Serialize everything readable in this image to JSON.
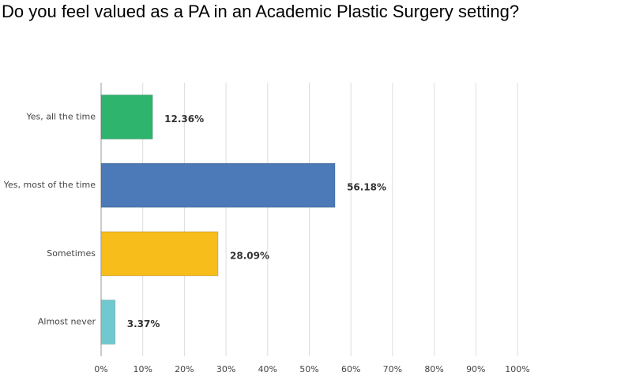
{
  "chart_data": {
    "type": "hbar",
    "title": "Do you feel valued as a PA in an Academic Plastic Surgery setting?",
    "categories": [
      "Yes, all the time",
      "Yes, most of the time",
      "Sometimes",
      "Almost never"
    ],
    "values": [
      12.36,
      56.18,
      28.09,
      3.37
    ],
    "value_labels": [
      "12.36%",
      "56.18%",
      "28.09%",
      "3.37%"
    ],
    "colors": [
      "#2fb46e",
      "#4c79b7",
      "#f6bd1b",
      "#6fc9cf"
    ],
    "xlim": [
      0,
      100
    ],
    "xticks": [
      {
        "value": 0,
        "label": "0%"
      },
      {
        "value": 10,
        "label": "10%"
      },
      {
        "value": 20,
        "label": "20%"
      },
      {
        "value": 30,
        "label": "30%"
      },
      {
        "value": 40,
        "label": "40%"
      },
      {
        "value": 50,
        "label": "50%"
      },
      {
        "value": 60,
        "label": "60%"
      },
      {
        "value": 70,
        "label": "70%"
      },
      {
        "value": 80,
        "label": "80%"
      },
      {
        "value": 90,
        "label": "90%"
      },
      {
        "value": 100,
        "label": "100%"
      }
    ],
    "grid": true
  }
}
